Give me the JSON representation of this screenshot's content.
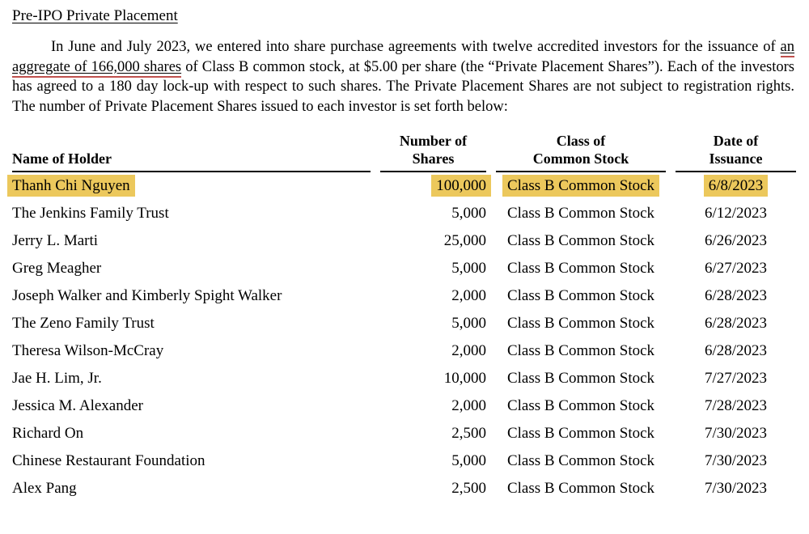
{
  "document": {
    "heading": "Pre-IPO Private Placement",
    "paragraph": {
      "text_before": "In June and July 2023, we entered into share purchase agreements with twelve accredited investors for the issuance of ",
      "underlined_text": "an aggregate of 166,000 shares",
      "text_after": " of Class B common stock, at $5.00 per share (the “Private Placement Shares”). Each of the investors has agreed to a 180 day lock-up with respect to such shares. The Private Placement Shares are not subject to registration rights. The number of Private Placement Shares issued to each investor is set forth below:"
    }
  },
  "table": {
    "headers": {
      "holder": "Name of Holder",
      "shares_line1": "Number of",
      "shares_line2": "Shares",
      "class_line1": "Class of",
      "class_line2": "Common Stock",
      "date_line1": "Date of",
      "date_line2": "Issuance"
    },
    "rows": [
      {
        "name": "Thanh Chi Nguyen",
        "shares": "100,000",
        "stock_class": "Class B Common Stock",
        "date": "6/8/2023",
        "highlighted": true
      },
      {
        "name": "The Jenkins Family Trust",
        "shares": "5,000",
        "stock_class": "Class B Common Stock",
        "date": "6/12/2023",
        "highlighted": false
      },
      {
        "name": "Jerry L. Marti",
        "shares": "25,000",
        "stock_class": "Class B Common Stock",
        "date": "6/26/2023",
        "highlighted": false
      },
      {
        "name": "Greg Meagher",
        "shares": "5,000",
        "stock_class": "Class B Common Stock",
        "date": "6/27/2023",
        "highlighted": false
      },
      {
        "name": "Joseph Walker and Kimberly Spight Walker",
        "shares": "2,000",
        "stock_class": "Class B Common Stock",
        "date": "6/28/2023",
        "highlighted": false
      },
      {
        "name": "The Zeno Family Trust",
        "shares": "5,000",
        "stock_class": "Class B Common Stock",
        "date": "6/28/2023",
        "highlighted": false
      },
      {
        "name": "Theresa Wilson-McCray",
        "shares": "2,000",
        "stock_class": "Class B Common Stock",
        "date": "6/28/2023",
        "highlighted": false
      },
      {
        "name": "Jae H. Lim, Jr.",
        "shares": "10,000",
        "stock_class": "Class B Common Stock",
        "date": "7/27/2023",
        "highlighted": false
      },
      {
        "name": "Jessica M. Alexander",
        "shares": "2,000",
        "stock_class": "Class B Common Stock",
        "date": "7/28/2023",
        "highlighted": false
      },
      {
        "name": "Richard On",
        "shares": "2,500",
        "stock_class": "Class B Common Stock",
        "date": "7/30/2023",
        "highlighted": false
      },
      {
        "name": "Chinese Restaurant Foundation",
        "shares": "5,000",
        "stock_class": "Class B Common Stock",
        "date": "7/30/2023",
        "highlighted": false
      },
      {
        "name": "Alex Pang",
        "shares": "2,500",
        "stock_class": "Class B Common Stock",
        "date": "7/30/2023",
        "highlighted": false
      }
    ]
  },
  "colors": {
    "text": "#000000",
    "highlight": "#ECC85C",
    "annotation_underline": "#C0504D"
  }
}
